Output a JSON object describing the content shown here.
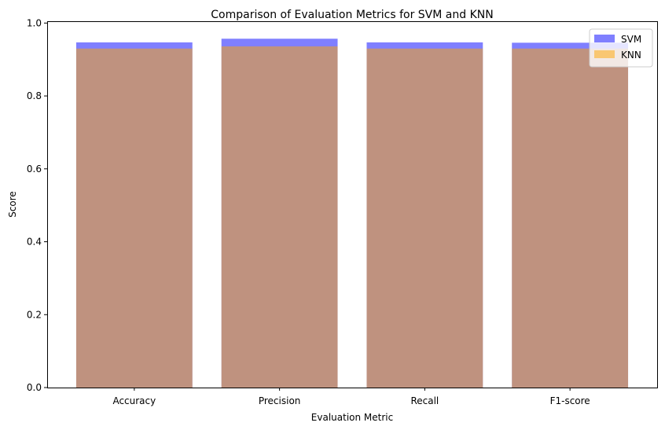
{
  "chart_data": {
    "type": "bar",
    "title": "Comparison of Evaluation Metrics for SVM and KNN",
    "xlabel": "Evaluation Metric",
    "ylabel": "Score",
    "categories": [
      "Accuracy",
      "Precision",
      "Recall",
      "F1-score"
    ],
    "ylim": [
      0,
      1.0
    ],
    "yticks": [
      "0.0",
      "0.2",
      "0.4",
      "0.6",
      "0.8",
      "1.0"
    ],
    "grid": false,
    "legend_position": "top-right",
    "overlay": true,
    "series": [
      {
        "name": "SVM",
        "color": "#0000ff",
        "alpha": 0.5,
        "values": [
          0.947,
          0.957,
          0.947,
          0.946
        ]
      },
      {
        "name": "KNN",
        "color": "#ffa500",
        "alpha": 0.5,
        "values": [
          0.93,
          0.936,
          0.93,
          0.93
        ]
      }
    ]
  }
}
